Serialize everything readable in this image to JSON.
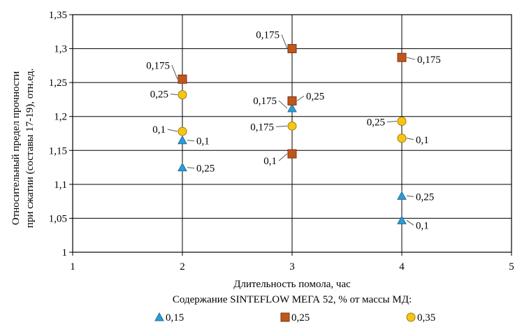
{
  "chart_data": {
    "type": "scatter",
    "xlabel": "Длительность помола, час",
    "ylabel_lines": [
      "Относительный предел прочности",
      "при сжатии (составы 17-19), отн.ед."
    ],
    "legend_title": "Содержание SINTEFLOW МЕГА 52, % от массы МД:",
    "xlim": [
      1,
      5
    ],
    "ylim": [
      1,
      1.35
    ],
    "x_ticks": [
      1,
      2,
      3,
      4,
      5
    ],
    "x_tick_labels": [
      "1",
      "2",
      "3",
      "4",
      "5"
    ],
    "y_ticks": [
      1,
      1.05,
      1.1,
      1.15,
      1.2,
      1.25,
      1.3,
      1.35
    ],
    "y_tick_labels": [
      "1",
      "1,05",
      "1,1",
      "1,15",
      "1,2",
      "1,25",
      "1,3",
      "1,35"
    ],
    "grid": true,
    "legend_position": "bottom",
    "series": [
      {
        "name": "0,15",
        "marker": "triangle",
        "color": "#2e9bd6",
        "stroke": "#1f6f9a",
        "points": [
          {
            "x": 2,
            "y": 1.165,
            "label": "0,1"
          },
          {
            "x": 2,
            "y": 1.125,
            "label": "0,25"
          },
          {
            "x": 3,
            "y": 1.212,
            "label": "0,175"
          },
          {
            "x": 4,
            "y": 1.083,
            "label": "0,25"
          },
          {
            "x": 4,
            "y": 1.047,
            "label": "0,1"
          }
        ]
      },
      {
        "name": "0,25",
        "marker": "square",
        "color": "#c0561c",
        "stroke": "#7a3410",
        "points": [
          {
            "x": 2,
            "y": 1.255,
            "label": "0,175"
          },
          {
            "x": 3,
            "y": 1.3,
            "label": "0,175"
          },
          {
            "x": 3,
            "y": 1.223,
            "label": "0,25"
          },
          {
            "x": 3,
            "y": 1.145,
            "label": "0,1"
          },
          {
            "x": 4,
            "y": 1.287,
            "label": "0,175"
          }
        ]
      },
      {
        "name": "0,35",
        "marker": "circle",
        "color": "#f5c518",
        "stroke": "#a07d00",
        "points": [
          {
            "x": 2,
            "y": 1.232,
            "label": "0,25"
          },
          {
            "x": 2,
            "y": 1.178,
            "label": "0,1"
          },
          {
            "x": 3,
            "y": 1.186,
            "label": "0,175"
          },
          {
            "x": 4,
            "y": 1.193,
            "label": "0,25"
          },
          {
            "x": 4,
            "y": 1.168,
            "label": "0,1"
          }
        ]
      }
    ]
  }
}
